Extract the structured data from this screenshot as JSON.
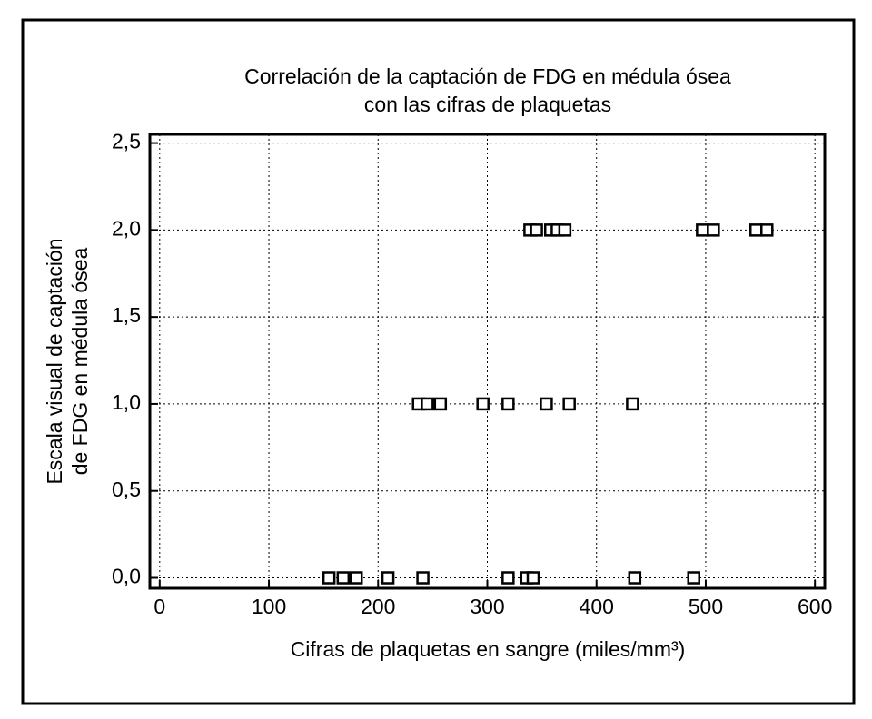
{
  "chart_data": {
    "type": "scatter",
    "title": [
      "Correlación de la captación de FDG en médula ósea",
      "con las cifras de plaquetas"
    ],
    "x_label": "Cifras de plaquetas en sangre (miles/mm³)",
    "y_label": [
      "Escala visual de captación",
      "de FDG en médula ósea"
    ],
    "series": [
      {
        "color": "#000000",
        "x": [
          339,
          345,
          358,
          364,
          371,
          497,
          507,
          546,
          556,
          237,
          245,
          257,
          296,
          319,
          354,
          375,
          433,
          155,
          168,
          180,
          209,
          241,
          319,
          336,
          342,
          435,
          489
        ],
        "values": [
          2,
          2,
          2,
          2,
          2,
          2,
          2,
          2,
          2,
          1,
          1,
          1,
          1,
          1,
          1,
          1,
          1,
          0,
          0,
          0,
          0,
          0,
          0,
          0,
          0,
          0,
          0
        ]
      }
    ],
    "xlim": [
      -9,
      609
    ],
    "ylim": [
      -0.06,
      2.55
    ],
    "xticks": [
      0,
      100,
      200,
      300,
      400,
      500,
      600
    ],
    "yticks": [
      {
        "value": 0,
        "label": "0,0"
      },
      {
        "value": 0.5,
        "label": "0,5"
      },
      {
        "value": 1,
        "label": "1,0"
      },
      {
        "value": 1.5,
        "label": "1,5"
      },
      {
        "value": 2,
        "label": "2,0"
      },
      {
        "value": 2.5,
        "label": "2,5"
      }
    ],
    "grid": true
  }
}
